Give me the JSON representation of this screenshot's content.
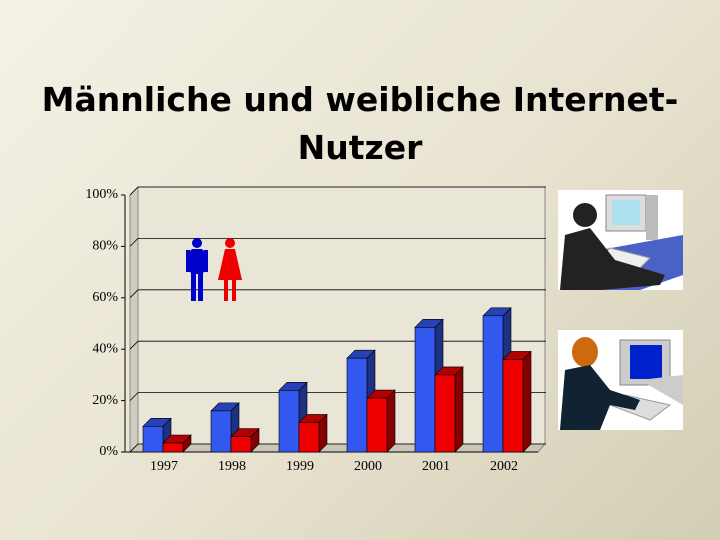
{
  "chart_data": {
    "type": "bar3d",
    "title": "Männliche und weibliche Internet-Nutzer",
    "categories": [
      "1997",
      "1998",
      "1999",
      "2000",
      "2001",
      "2002"
    ],
    "series": [
      {
        "color": "#3358f0",
        "values": [
          10,
          16,
          24,
          36.5,
          48.5,
          53
        ]
      },
      {
        "color": "#ee0000",
        "values": [
          3.5,
          6,
          11.5,
          21,
          30,
          36
        ]
      }
    ],
    "ylim": [
      0,
      100
    ],
    "yticks": [
      {
        "value": 0,
        "label": "0%"
      },
      {
        "value": 20,
        "label": "20%"
      },
      {
        "value": 40,
        "label": "40%"
      },
      {
        "value": 60,
        "label": "60%"
      },
      {
        "value": 80,
        "label": "80%"
      },
      {
        "value": 100,
        "label": "100%"
      }
    ],
    "grid": true
  }
}
